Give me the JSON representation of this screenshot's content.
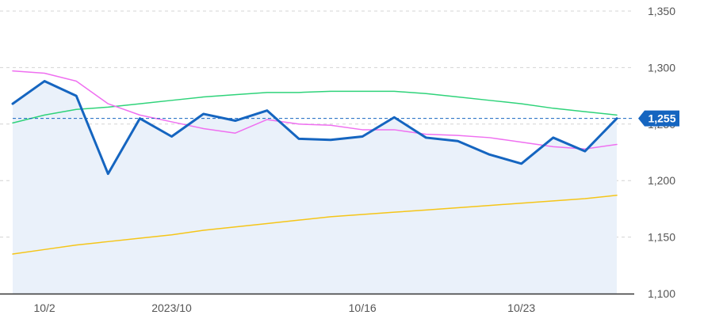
{
  "colors": {
    "price": "#1565c0",
    "area_fill": "#eaf1fa",
    "ma_short": "#ef6ff0",
    "ma_mid": "#2fd37a",
    "ma_long": "#f5c518",
    "grid": "#d4d4d4",
    "axis": "#333333",
    "badge": "#1565c0",
    "last_line": "#1565c0"
  },
  "chart_data": {
    "type": "line",
    "title": "",
    "xlabel": "",
    "ylabel": "",
    "ylim": [
      1100,
      1350
    ],
    "x": [
      "9/29",
      "10/2",
      "10/3",
      "10/4",
      "10/5",
      "10/6",
      "10/9",
      "10/10",
      "10/11",
      "10/12",
      "10/13",
      "10/16",
      "10/17",
      "10/18",
      "10/19",
      "10/20",
      "10/23",
      "10/24",
      "10/25",
      "10/26"
    ],
    "y_ticks": [
      "1,100",
      "1,150",
      "1,200",
      "1,250",
      "1,300",
      "1,350"
    ],
    "y_tick_values": [
      1100,
      1150,
      1200,
      1250,
      1300,
      1350
    ],
    "x_ticks": [
      {
        "label": "10/2",
        "x": "10/2"
      },
      {
        "label": "2023/10",
        "x": "10/6"
      },
      {
        "label": "10/16",
        "x": "10/16"
      },
      {
        "label": "10/23",
        "x": "10/23"
      }
    ],
    "grid": true,
    "last_value": 1255,
    "last_label": "1,255",
    "series": [
      {
        "key": "price",
        "values": [
          1268,
          1288,
          1275,
          1206,
          1255,
          1239,
          1259,
          1253,
          1262,
          1237,
          1236,
          1239,
          1256,
          1238,
          1235,
          1223,
          1215,
          1238,
          1226,
          1255
        ]
      },
      {
        "key": "ma_short",
        "values": [
          1297,
          1295,
          1288,
          1268,
          1258,
          1252,
          1246,
          1242,
          1254,
          1250,
          1249,
          1245,
          1245,
          1241,
          1240,
          1238,
          1234,
          1230,
          1228,
          1232
        ]
      },
      {
        "key": "ma_mid",
        "values": [
          1251,
          1258,
          1263,
          1265,
          1268,
          1271,
          1274,
          1276,
          1278,
          1278,
          1279,
          1279,
          1279,
          1277,
          1274,
          1271,
          1268,
          1264,
          1261,
          1258
        ]
      },
      {
        "key": "ma_long",
        "values": [
          1135,
          1139,
          1143,
          1146,
          1149,
          1152,
          1156,
          1159,
          1162,
          1165,
          1168,
          1170,
          1172,
          1174,
          1176,
          1178,
          1180,
          1182,
          1184,
          1187
        ]
      }
    ]
  }
}
